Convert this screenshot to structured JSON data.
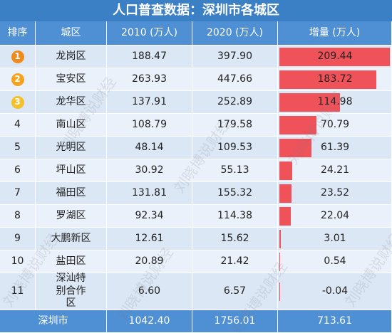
{
  "title": "人口普查数据：深圳市各城区",
  "watermark": "刘晓博说财经",
  "header": [
    "排序",
    "城区",
    "2010 (万人)",
    "2020 (万人)",
    "增量 (万人)"
  ],
  "rows": [
    [
      "1",
      "龙岗区",
      "188.47",
      "397.90",
      "209.44"
    ],
    [
      "2",
      "宝安区",
      "263.93",
      "447.66",
      "183.72"
    ],
    [
      "3",
      "龙华区",
      "137.91",
      "252.89",
      "114.98"
    ],
    [
      "4",
      "南山区",
      "108.79",
      "179.58",
      "70.79"
    ],
    [
      "5",
      "光明区",
      "48.14",
      "109.53",
      "61.39"
    ],
    [
      "6",
      "坪山区",
      "30.92",
      "55.13",
      "24.21"
    ],
    [
      "7",
      "福田区",
      "131.81",
      "155.32",
      "23.52"
    ],
    [
      "8",
      "罗湖区",
      "92.34",
      "114.38",
      "22.04"
    ],
    [
      "9",
      "大鹏新区",
      "12.61",
      "15.62",
      "3.01"
    ],
    [
      "10",
      "盐田区",
      "20.89",
      "21.42",
      "0.54"
    ],
    [
      "11",
      "深汕特别合作区",
      "6.60",
      "6.57",
      "-0.04"
    ]
  ],
  "total": [
    "深圳市",
    "1042.40",
    "1756.01",
    "713.61"
  ]
}
